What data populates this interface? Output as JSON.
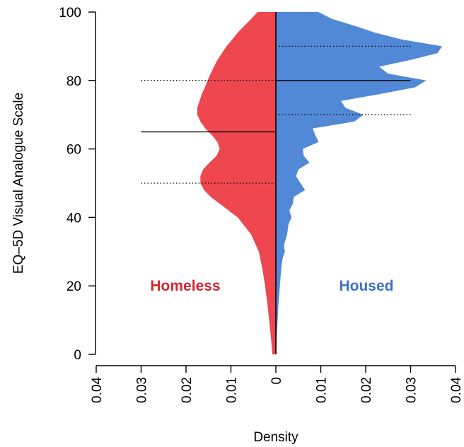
{
  "chart_data": {
    "type": "area",
    "subtype": "back-to-back density (split violin) plot",
    "xlabel": "Density",
    "ylabel": "EQ–5D Visual Analogue Scale",
    "ylim": [
      0,
      100
    ],
    "yticks": [
      0,
      20,
      40,
      60,
      80,
      100
    ],
    "xlim": [
      -0.04,
      0.04
    ],
    "xticks": [
      -0.04,
      -0.03,
      -0.02,
      -0.01,
      0,
      0.01,
      0.02,
      0.03,
      0.04
    ],
    "xtick_labels": [
      "0.04",
      "0.03",
      "0.02",
      "0.01",
      "0",
      "0.01",
      "0.02",
      "0.03",
      "0.04"
    ],
    "grid": false,
    "series": [
      {
        "name": "Homeless",
        "side": "left",
        "color": "#ee4750",
        "label_color": "#d6262f",
        "y": [
          0,
          2,
          5,
          10,
          15,
          20,
          25,
          30,
          35,
          40,
          43,
          46,
          48,
          50,
          52,
          54,
          56,
          58,
          60,
          62,
          64,
          66,
          68,
          70,
          72,
          74,
          76,
          78,
          80,
          82,
          84,
          86,
          88,
          90,
          92,
          94,
          96,
          98,
          100
        ],
        "density": [
          0.0008,
          0.0009,
          0.0011,
          0.0015,
          0.0019,
          0.0024,
          0.003,
          0.0038,
          0.0055,
          0.0085,
          0.0115,
          0.0145,
          0.016,
          0.0168,
          0.0168,
          0.0162,
          0.0148,
          0.0132,
          0.0125,
          0.013,
          0.0142,
          0.0157,
          0.0168,
          0.0175,
          0.0175,
          0.017,
          0.0165,
          0.0158,
          0.0152,
          0.0145,
          0.0138,
          0.013,
          0.012,
          0.011,
          0.0097,
          0.0085,
          0.007,
          0.0055,
          0.0041
        ],
        "quartiles": {
          "q1": 50,
          "median": 65,
          "q3": 80,
          "line_extent": 0.03
        }
      },
      {
        "name": "Housed",
        "side": "right",
        "color": "#5289d6",
        "label_color": "#3a73c6",
        "y": [
          0,
          5,
          10,
          15,
          20,
          22,
          25,
          28,
          30,
          32,
          35,
          38,
          40,
          42,
          44,
          46,
          48,
          50,
          52,
          54,
          56,
          58,
          60,
          62,
          64,
          66,
          68,
          70,
          72,
          74,
          76,
          78,
          80,
          82,
          84,
          86,
          88,
          90,
          92,
          94,
          96,
          98,
          100
        ],
        "density": [
          0.0001,
          0.0002,
          0.0004,
          0.0006,
          0.0009,
          0.001,
          0.0012,
          0.0015,
          0.002,
          0.0018,
          0.0025,
          0.0028,
          0.0035,
          0.003,
          0.0038,
          0.004,
          0.0065,
          0.0055,
          0.0045,
          0.005,
          0.0075,
          0.0062,
          0.006,
          0.0095,
          0.0088,
          0.0082,
          0.0175,
          0.0195,
          0.0155,
          0.0145,
          0.023,
          0.031,
          0.0335,
          0.025,
          0.023,
          0.03,
          0.036,
          0.037,
          0.028,
          0.022,
          0.0175,
          0.0125,
          0.0095
        ],
        "quartiles": {
          "q1": 70,
          "median": 80,
          "q3": 90,
          "line_extent": 0.03
        }
      }
    ],
    "annotations": [
      "Homeless",
      "Housed"
    ]
  }
}
